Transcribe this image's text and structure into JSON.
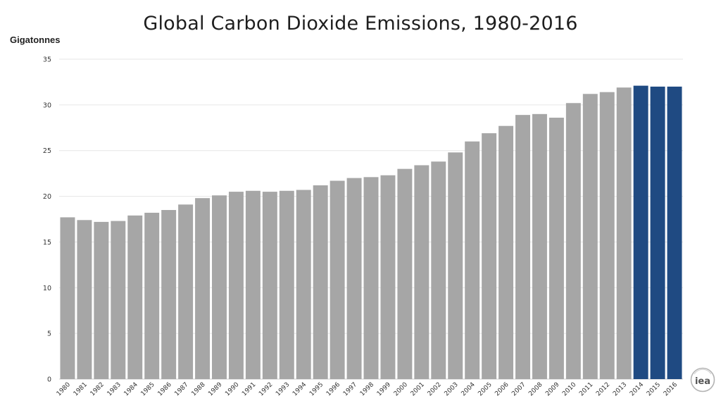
{
  "chart_data": {
    "type": "bar",
    "title": "Global Carbon Dioxide Emissions, 1980-2016",
    "ylabel": "Gigatonnes",
    "xlabel": "",
    "ylim": [
      0,
      35
    ],
    "yticks": [
      0,
      5,
      10,
      15,
      20,
      25,
      30,
      35
    ],
    "grid": "horizontal",
    "categories": [
      "1980",
      "1981",
      "1982",
      "1983",
      "1984",
      "1985",
      "1986",
      "1987",
      "1988",
      "1989",
      "1990",
      "1991",
      "1992",
      "1993",
      "1994",
      "1995",
      "1996",
      "1997",
      "1998",
      "1999",
      "2000",
      "2001",
      "2002",
      "2003",
      "2004",
      "2005",
      "2006",
      "2007",
      "2008",
      "2009",
      "2010",
      "2011",
      "2012",
      "2013",
      "2014",
      "2015",
      "2016"
    ],
    "values": [
      17.7,
      17.4,
      17.2,
      17.3,
      17.9,
      18.2,
      18.5,
      19.1,
      19.8,
      20.1,
      20.5,
      20.6,
      20.5,
      20.6,
      20.7,
      21.2,
      21.7,
      22.0,
      22.1,
      22.3,
      23.0,
      23.4,
      23.8,
      24.8,
      26.0,
      26.9,
      27.7,
      28.9,
      29.0,
      28.6,
      30.2,
      31.2,
      31.4,
      31.9,
      32.1,
      32.0,
      32.0
    ],
    "colors": {
      "default": "#a6a6a6",
      "highlight": "#1f4a82",
      "highlight_categories": [
        "2014",
        "2015",
        "2016"
      ],
      "grid": "#e6e6e6"
    }
  },
  "logo": {
    "text": "iea"
  }
}
